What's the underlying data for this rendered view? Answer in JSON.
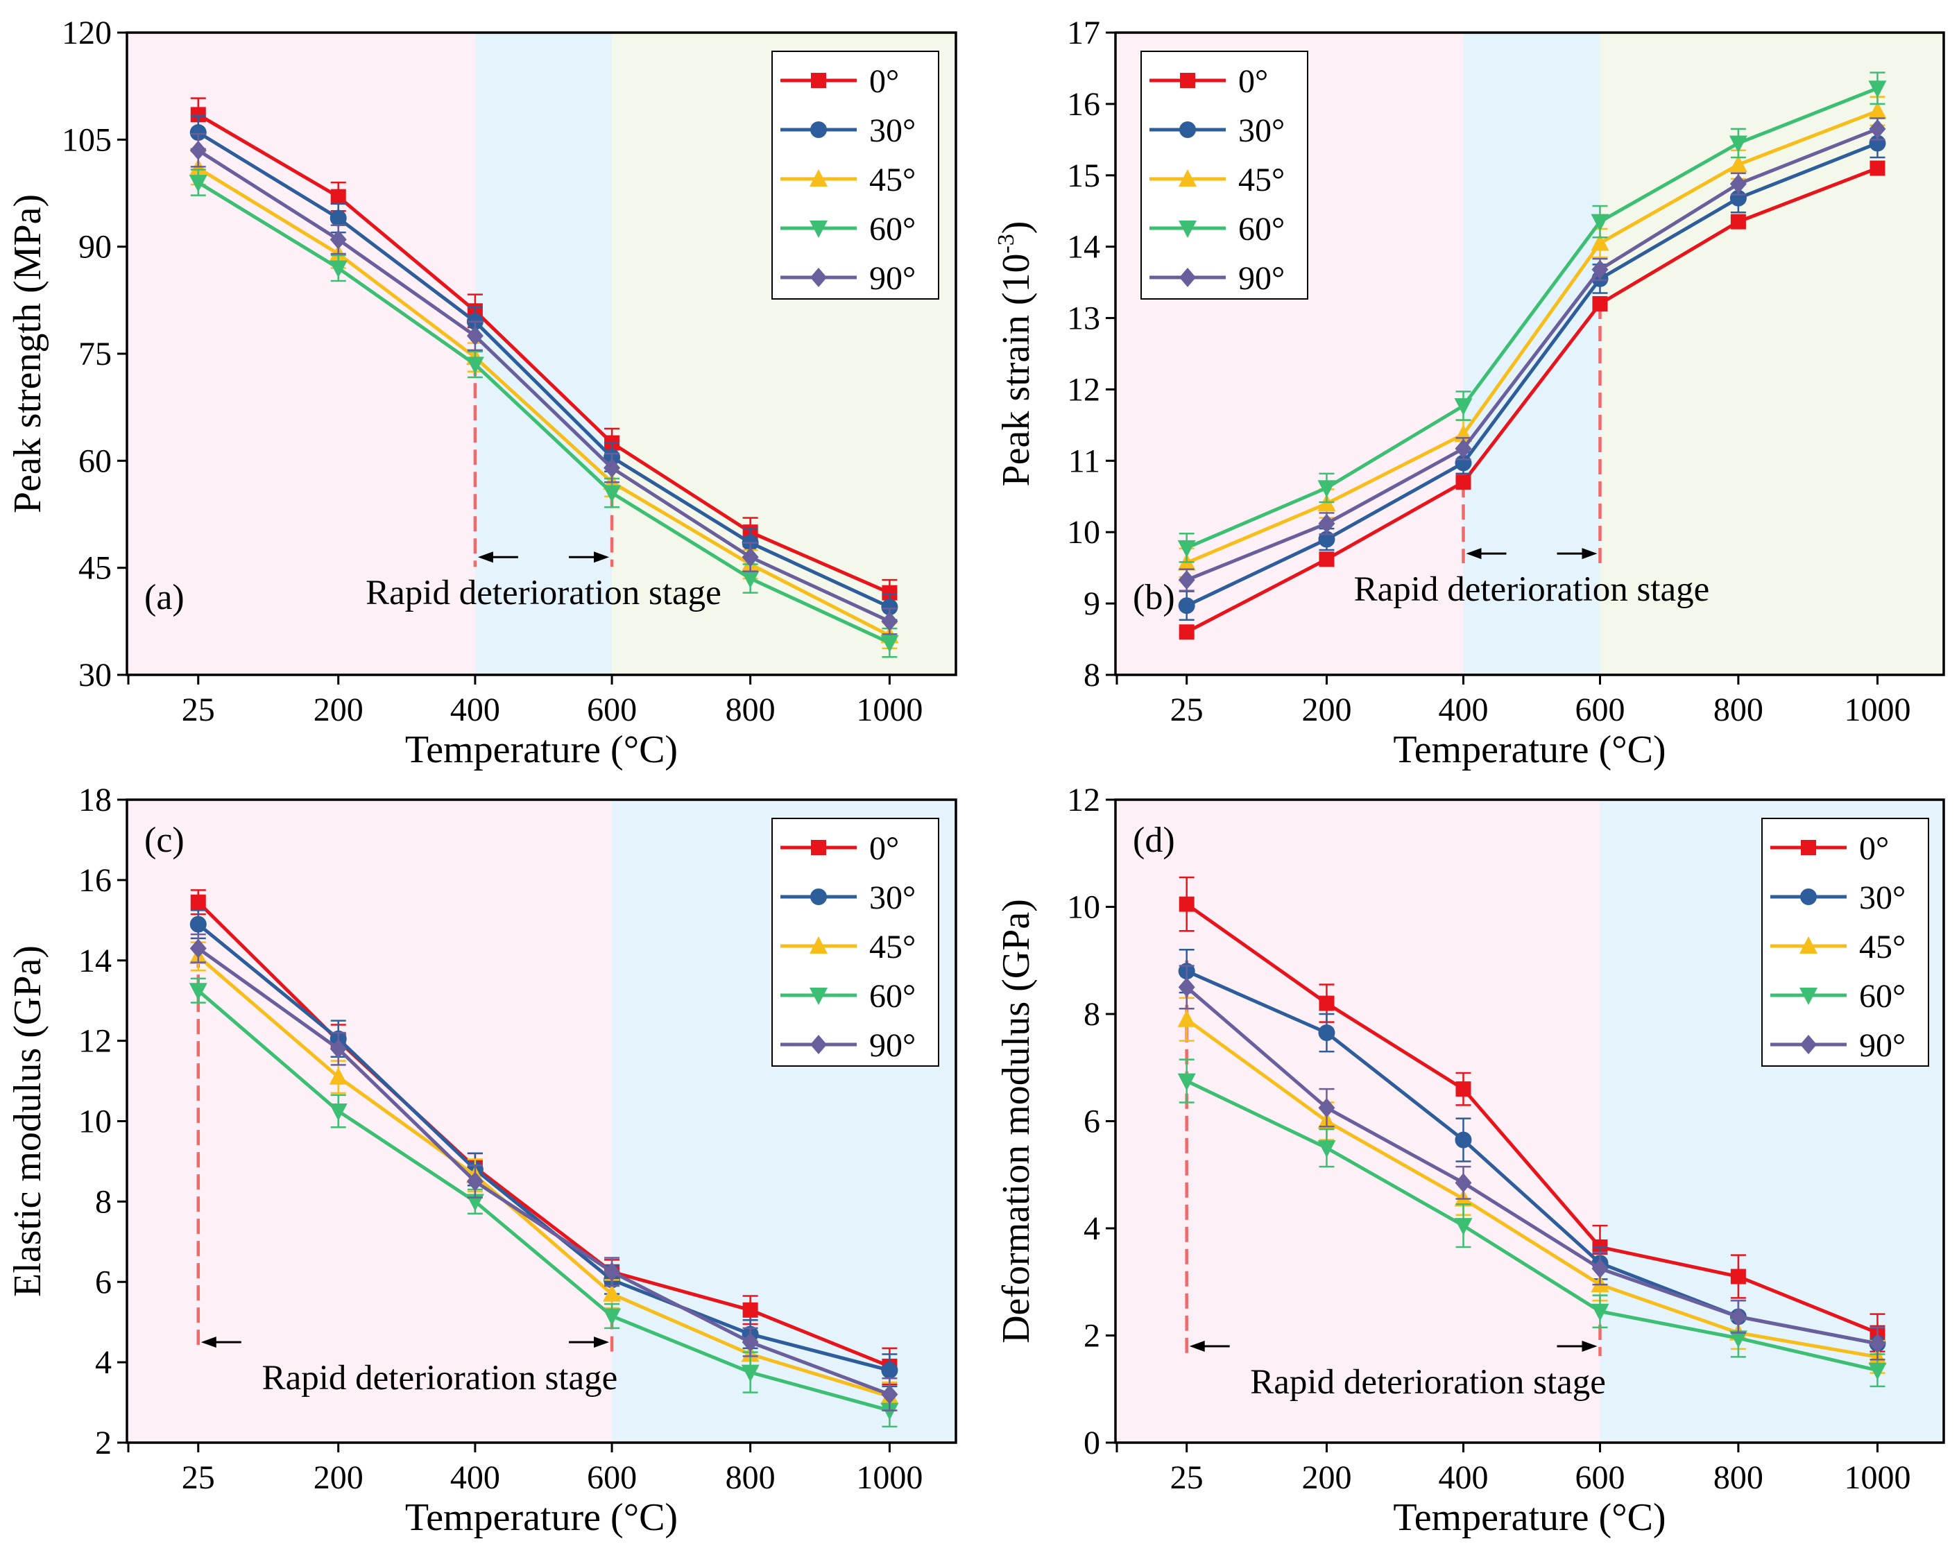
{
  "colors": {
    "series": [
      "#e8141c",
      "#2d5d9a",
      "#f7bd1a",
      "#3cbf72",
      "#6a5f9d"
    ],
    "band_pink": "#fdf1f7",
    "band_blue": "#e5f3fc",
    "band_green": "#f4f8ea",
    "guide_line": "#f06a6a",
    "axis": "#000000"
  },
  "chart_data": [
    {
      "type": "line",
      "panel_label": "(a)",
      "categories": [
        "25",
        "200",
        "400",
        "600",
        "800",
        "1000"
      ],
      "xlabel": "Temperature (°C)",
      "ylabel": "Peak strength (MPa)",
      "ylim": [
        30,
        120
      ],
      "yticks": [
        30,
        45,
        60,
        75,
        90,
        105,
        120
      ],
      "legend_position": "top-right",
      "bands": [
        {
          "from": "start",
          "to": "400",
          "color": "pink"
        },
        {
          "from": "400",
          "to": "600",
          "color": "blue"
        },
        {
          "from": "600",
          "to": "end",
          "color": "green"
        }
      ],
      "annotation": {
        "text": "Rapid deterioration stage",
        "from": "400",
        "to": "600",
        "guides": [
          {
            "x": "400",
            "y": 74
          },
          {
            "x": "600",
            "y": 55.5
          }
        ],
        "arrow_y": 46.5
      },
      "series": [
        {
          "name": "0°",
          "marker": "square",
          "values": [
            108.5,
            97.0,
            81.0,
            62.5,
            50.0,
            41.5
          ],
          "errors": [
            2.3,
            2.0,
            2.3,
            2.0,
            2.0,
            1.8
          ]
        },
        {
          "name": "30°",
          "marker": "circle",
          "values": [
            106.0,
            94.0,
            79.5,
            60.5,
            48.5,
            39.5
          ],
          "errors": [
            2.3,
            2.0,
            2.0,
            2.0,
            2.0,
            1.8
          ]
        },
        {
          "name": "45°",
          "marker": "triangle-up",
          "values": [
            101.0,
            89.0,
            74.5,
            57.0,
            45.5,
            35.5
          ],
          "errors": [
            2.3,
            2.0,
            2.0,
            2.0,
            2.0,
            1.8
          ]
        },
        {
          "name": "60°",
          "marker": "triangle-down",
          "values": [
            99.0,
            87.0,
            73.5,
            55.5,
            43.5,
            34.5
          ],
          "errors": [
            1.8,
            1.8,
            1.8,
            2.0,
            2.0,
            2.0
          ]
        },
        {
          "name": "90°",
          "marker": "diamond",
          "values": [
            103.5,
            91.0,
            77.5,
            59.0,
            46.5,
            37.5
          ],
          "errors": [
            2.3,
            2.0,
            2.0,
            2.0,
            2.0,
            1.8
          ]
        }
      ]
    },
    {
      "type": "line",
      "panel_label": "(b)",
      "categories": [
        "25",
        "200",
        "400",
        "600",
        "800",
        "1000"
      ],
      "xlabel": "Temperature (°C)",
      "ylabel_main": "Peak strain (10",
      "ylabel_sup": "-3",
      "ylabel_end": ")",
      "ylim": [
        8,
        17
      ],
      "yticks": [
        8,
        9,
        10,
        11,
        12,
        13,
        14,
        15,
        16,
        17
      ],
      "legend_position": "top-left",
      "bands": [
        {
          "from": "start",
          "to": "400",
          "color": "pink"
        },
        {
          "from": "400",
          "to": "600",
          "color": "blue"
        },
        {
          "from": "600",
          "to": "end",
          "color": "green"
        }
      ],
      "annotation": {
        "text": "Rapid deterioration stage",
        "from": "400",
        "to": "600",
        "guides": [
          {
            "x": "400",
            "y": 10.7
          },
          {
            "x": "600",
            "y": 13.2
          }
        ],
        "arrow_y": 9.7
      },
      "series": [
        {
          "name": "0°",
          "marker": "square",
          "values": [
            8.6,
            9.62,
            10.7,
            13.2,
            14.35,
            15.1
          ],
          "errors": [
            0.05,
            0.05,
            0.05,
            0.05,
            0.05,
            0.05
          ]
        },
        {
          "name": "30°",
          "marker": "circle",
          "values": [
            8.97,
            9.9,
            10.97,
            13.55,
            14.68,
            15.45
          ],
          "errors": [
            0.2,
            0.15,
            0.15,
            0.2,
            0.2,
            0.2
          ]
        },
        {
          "name": "45°",
          "marker": "triangle-up",
          "values": [
            9.57,
            10.4,
            11.37,
            14.05,
            15.15,
            15.9
          ],
          "errors": [
            0.2,
            0.2,
            0.2,
            0.2,
            0.2,
            0.2
          ]
        },
        {
          "name": "60°",
          "marker": "triangle-down",
          "values": [
            9.78,
            10.62,
            11.77,
            14.35,
            15.45,
            16.22
          ],
          "errors": [
            0.2,
            0.2,
            0.2,
            0.22,
            0.2,
            0.22
          ]
        },
        {
          "name": "90°",
          "marker": "diamond",
          "values": [
            9.33,
            10.12,
            11.17,
            13.68,
            14.88,
            15.65
          ],
          "errors": [
            0.15,
            0.15,
            0.15,
            0.15,
            0.15,
            0.15
          ]
        }
      ]
    },
    {
      "type": "line",
      "panel_label": "(c)",
      "categories": [
        "25",
        "200",
        "400",
        "600",
        "800",
        "1000"
      ],
      "xlabel": "Temperature (°C)",
      "ylabel": "Elastic modulus (GPa)",
      "ylim": [
        2,
        18
      ],
      "yticks": [
        2,
        4,
        6,
        8,
        10,
        12,
        14,
        16,
        18
      ],
      "legend_position": "top-right",
      "bands": [
        {
          "from": "start",
          "to": "600",
          "color": "pink"
        },
        {
          "from": "600",
          "to": "end",
          "color": "blue"
        }
      ],
      "annotation": {
        "text": "Rapid deterioration stage",
        "from": "25",
        "to": "600",
        "guides": [
          {
            "x": "25",
            "y": 14.2
          },
          {
            "x": "600",
            "y": 5.2
          }
        ],
        "arrow_y": 4.5
      },
      "series": [
        {
          "name": "0°",
          "marker": "square",
          "values": [
            15.45,
            12.0,
            8.85,
            6.25,
            5.3,
            3.9
          ],
          "errors": [
            0.3,
            0.4,
            0.35,
            0.3,
            0.35,
            0.45
          ]
        },
        {
          "name": "30°",
          "marker": "circle",
          "values": [
            14.9,
            12.05,
            8.8,
            6.05,
            4.7,
            3.8
          ],
          "errors": [
            0.35,
            0.45,
            0.4,
            0.35,
            0.35,
            0.4
          ]
        },
        {
          "name": "45°",
          "marker": "triangle-up",
          "values": [
            14.1,
            11.1,
            8.65,
            5.7,
            4.2,
            3.15
          ],
          "errors": [
            0.35,
            0.4,
            0.4,
            0.35,
            0.35,
            0.35
          ]
        },
        {
          "name": "60°",
          "marker": "triangle-down",
          "values": [
            13.25,
            10.25,
            8.0,
            5.15,
            3.75,
            2.8
          ],
          "errors": [
            0.3,
            0.4,
            0.3,
            0.3,
            0.5,
            0.4
          ]
        },
        {
          "name": "90°",
          "marker": "diamond",
          "values": [
            14.3,
            11.8,
            8.5,
            6.25,
            4.5,
            3.2
          ],
          "errors": [
            0.35,
            0.4,
            0.4,
            0.35,
            0.35,
            0.4
          ]
        }
      ]
    },
    {
      "type": "line",
      "panel_label": "(d)",
      "categories": [
        "25",
        "200",
        "400",
        "600",
        "800",
        "1000"
      ],
      "xlabel": "Temperature (°C)",
      "ylabel": "Deformation modulus (GPa)",
      "ylim": [
        0,
        12
      ],
      "yticks": [
        0,
        2,
        4,
        6,
        8,
        10,
        12
      ],
      "legend_position": "top-right",
      "bands": [
        {
          "from": "start",
          "to": "600",
          "color": "pink"
        },
        {
          "from": "600",
          "to": "end",
          "color": "blue"
        }
      ],
      "annotation": {
        "text": "Rapid deterioration stage",
        "from": "25",
        "to": "600",
        "guides": [
          {
            "x": "25",
            "y": 9.0
          },
          {
            "x": "600",
            "y": 2.2
          }
        ],
        "arrow_y": 1.8
      },
      "series": [
        {
          "name": "0°",
          "marker": "square",
          "values": [
            10.05,
            8.2,
            6.6,
            3.65,
            3.1,
            2.05
          ],
          "errors": [
            0.5,
            0.35,
            0.3,
            0.4,
            0.4,
            0.35
          ]
        },
        {
          "name": "30°",
          "marker": "circle",
          "values": [
            8.8,
            7.65,
            5.65,
            3.35,
            2.35,
            1.85
          ],
          "errors": [
            0.4,
            0.35,
            0.4,
            0.3,
            0.3,
            0.3
          ]
        },
        {
          "name": "45°",
          "marker": "triangle-up",
          "values": [
            7.9,
            6.0,
            4.55,
            2.95,
            2.05,
            1.6
          ],
          "errors": [
            0.4,
            0.35,
            0.3,
            0.3,
            0.3,
            0.3
          ]
        },
        {
          "name": "60°",
          "marker": "triangle-down",
          "values": [
            6.75,
            5.5,
            4.05,
            2.45,
            1.95,
            1.35
          ],
          "errors": [
            0.4,
            0.35,
            0.4,
            0.3,
            0.35,
            0.3
          ]
        },
        {
          "name": "90°",
          "marker": "diamond",
          "values": [
            8.5,
            6.25,
            4.85,
            3.25,
            2.35,
            1.85
          ],
          "errors": [
            0.4,
            0.35,
            0.3,
            0.3,
            0.3,
            0.3
          ]
        }
      ]
    }
  ]
}
